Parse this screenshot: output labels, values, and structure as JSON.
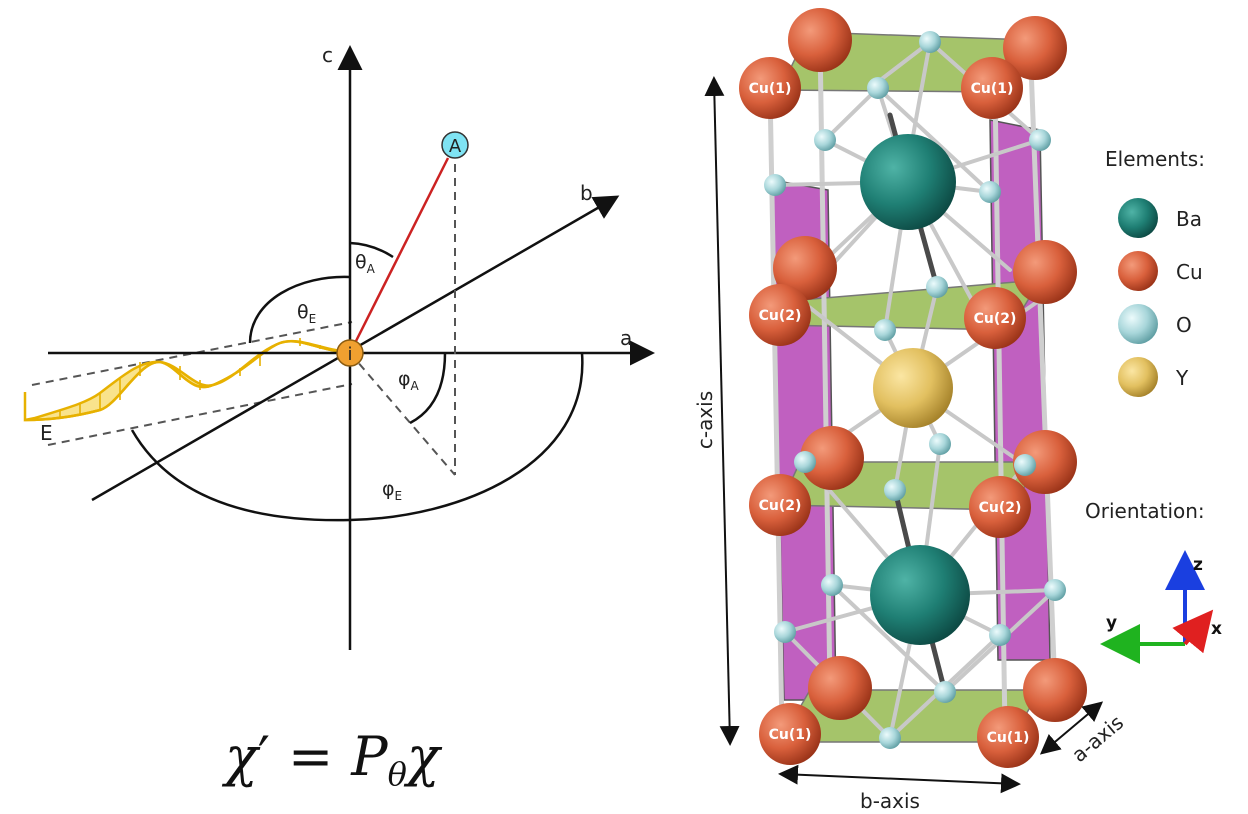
{
  "coordinate_diagram": {
    "axes": {
      "c": "c",
      "b": "b",
      "a": "a"
    },
    "point_A": "A",
    "point_i": "i",
    "wave_label": "E",
    "angles": {
      "theta_A": {
        "symbol": "θ",
        "sub": "A"
      },
      "theta_E": {
        "symbol": "θ",
        "sub": "E"
      },
      "phi_A": {
        "symbol": "φ",
        "sub": "A"
      },
      "phi_E": {
        "symbol": "φ",
        "sub": "E"
      }
    }
  },
  "equation": {
    "chi": "χ",
    "prime": "′",
    "equals": "=",
    "P": "P",
    "P_sub": "θ",
    "chi2": "χ"
  },
  "crystal": {
    "cu1_label": "Cu(1)",
    "cu2_label": "Cu(2)",
    "c_axis_label": "c-axis",
    "b_axis_label": "b-axis",
    "a_axis_label": "a-axis"
  },
  "legend": {
    "title": "Elements:",
    "items": [
      {
        "label": "Ba",
        "color": "#1f7f74"
      },
      {
        "label": "Cu",
        "color": "#d9603c"
      },
      {
        "label": "O",
        "color": "#a8d6da"
      },
      {
        "label": "Y",
        "color": "#e2c060"
      }
    ]
  },
  "orientation": {
    "title": "Orientation:",
    "z": "z",
    "y": "y",
    "x": "x"
  },
  "colors": {
    "vector_A": "#cc2222",
    "wave_fill": "#f7dc6f",
    "wave_stroke": "#e7b100",
    "origin": "#f0a030",
    "point_A": "#7fe3f3",
    "plane_green": "#a5c46a",
    "plane_purple": "#c060c0"
  }
}
